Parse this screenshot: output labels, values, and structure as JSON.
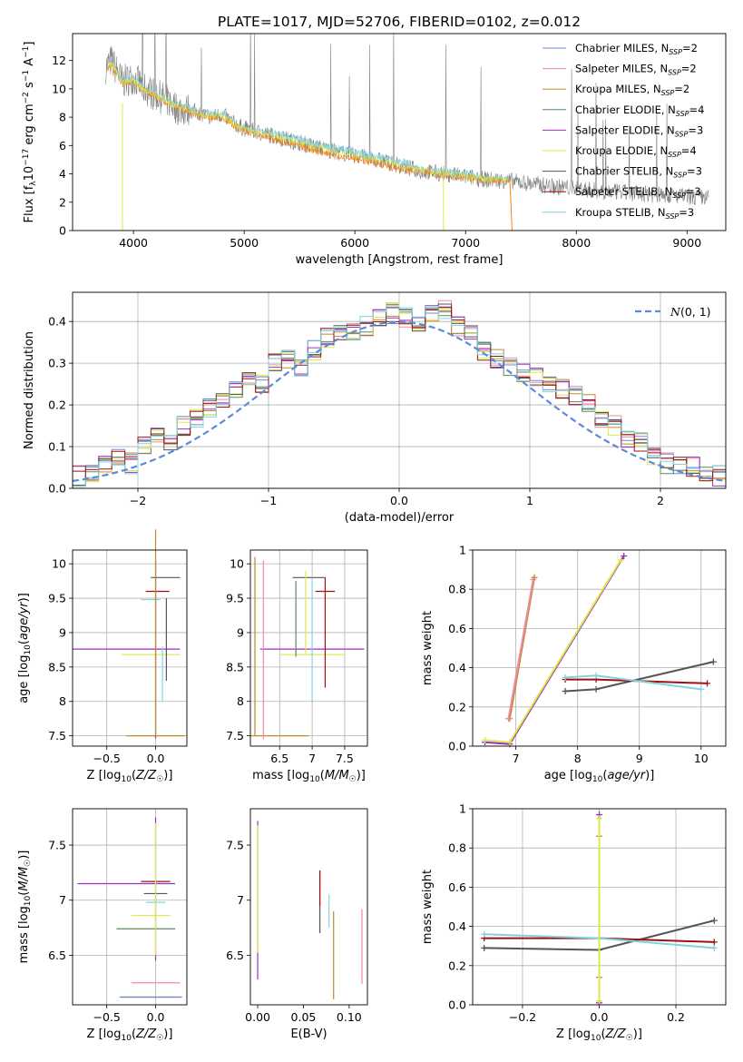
{
  "figure_title": "PLATE=1017, MJD=52706, FIBERID=0102, z=0.012",
  "colors": {
    "Chabrier MILES": "#6b8bd6",
    "Salpeter MILES": "#f08aa0",
    "Kroupa MILES": "#c08a2a",
    "Chabrier ELODIE": "#5e8a5e",
    "Salpeter ELODIE": "#9b30c0",
    "Kroupa ELODIE": "#dde84a",
    "Chabrier STELIB": "#555555",
    "Salpeter STELIB": "#a01010",
    "Kroupa STELIB": "#7fd4e0",
    "observed": "#808080",
    "model": "#ff7f0e",
    "gaussian": "#5b8bd8"
  },
  "chart_data": [
    {
      "id": "spectrum",
      "type": "line",
      "title": "PLATE=1017, MJD=52706, FIBERID=0102, z=0.012",
      "xlabel": "wavelength [Angstrom, rest frame]",
      "ylabel": "Flux [f_λ10^-17 erg cm^-2 s^-1 A^-1]",
      "xlim": [
        3450,
        9350
      ],
      "ylim": [
        0,
        13.9
      ],
      "xticks": [
        4000,
        5000,
        6000,
        7000,
        8000,
        9000
      ],
      "yticks": [
        0,
        2,
        4,
        6,
        8,
        10,
        12
      ],
      "grid": false,
      "legend_position": "top-right",
      "legend": [
        {
          "name": "Chabrier MILES",
          "nssp": "2"
        },
        {
          "name": "Salpeter MILES",
          "nssp": "2"
        },
        {
          "name": "Kroupa MILES",
          "nssp": "2"
        },
        {
          "name": "Chabrier ELODIE",
          "nssp": "4"
        },
        {
          "name": "Salpeter ELODIE",
          "nssp": "3"
        },
        {
          "name": "Kroupa ELODIE",
          "nssp": "4"
        },
        {
          "name": "Chabrier STELIB",
          "nssp": "3"
        },
        {
          "name": "Salpeter STELIB",
          "nssp": "3"
        },
        {
          "name": "Kroupa STELIB",
          "nssp": "3"
        }
      ],
      "observed_trend": {
        "x": [
          3750,
          3800,
          3900,
          4000,
          4100,
          4200,
          4300,
          4400,
          4500,
          4600,
          4700,
          4800,
          4900,
          5000,
          5200,
          5400,
          5600,
          5800,
          6000,
          6200,
          6400,
          6600,
          6800,
          7000,
          7200,
          7400,
          7600,
          7800,
          8000,
          8200,
          8400,
          8600,
          8800,
          9000,
          9200
        ],
        "y": [
          11.5,
          12.0,
          10.5,
          10.8,
          10.0,
          9.6,
          9.2,
          8.6,
          8.5,
          8.3,
          8.0,
          8.2,
          7.6,
          7.2,
          6.8,
          6.4,
          6.0,
          5.6,
          5.3,
          5.0,
          4.6,
          4.2,
          4.0,
          3.8,
          3.6,
          3.5,
          3.3,
          3.1,
          3.0,
          2.8,
          2.7,
          2.6,
          2.5,
          2.4,
          2.3
        ]
      },
      "model_trend": {
        "x": [
          3760,
          3800,
          3900,
          4000,
          4100,
          4200,
          4300,
          4400,
          4500,
          4600,
          4700,
          4800,
          4900,
          5000,
          5200,
          5400,
          5600,
          5800,
          6000,
          6200,
          6400,
          6600,
          6800,
          7000,
          7200,
          7400
        ],
        "y": [
          11.2,
          11.8,
          10.4,
          10.6,
          9.9,
          9.5,
          9.1,
          8.7,
          8.5,
          8.2,
          8.0,
          8.1,
          7.5,
          7.1,
          6.7,
          6.3,
          5.9,
          5.5,
          5.2,
          4.9,
          4.5,
          4.2,
          4.0,
          3.8,
          3.6,
          3.5
        ]
      }
    },
    {
      "id": "residuals",
      "type": "bar",
      "xlabel": "(data-model)/error",
      "ylabel": "Normed distribution",
      "xlim": [
        -2.5,
        2.5
      ],
      "ylim": [
        0,
        0.47
      ],
      "xticks": [
        -2,
        -1,
        0,
        1,
        2
      ],
      "yticks": [
        0.0,
        0.1,
        0.2,
        0.3,
        0.4
      ],
      "grid": true,
      "legend_position": "top-right",
      "legend_label": "N(0,1)",
      "bin_width": 0.1,
      "bin_start": -2.5,
      "values": [
        0.03,
        0.04,
        0.06,
        0.07,
        0.06,
        0.1,
        0.12,
        0.11,
        0.15,
        0.17,
        0.19,
        0.21,
        0.24,
        0.27,
        0.25,
        0.3,
        0.31,
        0.29,
        0.33,
        0.36,
        0.38,
        0.37,
        0.39,
        0.41,
        0.42,
        0.41,
        0.4,
        0.42,
        0.43,
        0.39,
        0.37,
        0.33,
        0.31,
        0.29,
        0.28,
        0.27,
        0.25,
        0.24,
        0.22,
        0.2,
        0.17,
        0.15,
        0.12,
        0.11,
        0.08,
        0.06,
        0.05,
        0.05,
        0.04,
        0.03
      ]
    },
    {
      "id": "age-vs-Z",
      "type": "errorbar",
      "xlabel": "Z [log10(Z/Z☉)]",
      "ylabel": "age [log10(age/yr)]",
      "xlim": [
        -0.85,
        0.32
      ],
      "ylim": [
        7.35,
        10.2
      ],
      "xticks": [
        -0.5,
        0.0
      ],
      "xticklabels": [
        "−0.5",
        "0.0"
      ],
      "yticks": [
        7.5,
        8.0,
        8.5,
        9.0,
        9.5,
        10.0
      ],
      "grid": true,
      "points": [
        {
          "series": "Salpeter ELODIE",
          "x": -0.3,
          "y": 8.76,
          "xerr": 0.55,
          "yerr": 0
        },
        {
          "series": "Kroupa ELODIE",
          "x": -0.05,
          "y": 8.68,
          "xerr": 0.3,
          "yerr": 0
        },
        {
          "series": "Chabrier STELIB",
          "x": 0.1,
          "y": 9.8,
          "xerr": 0.15,
          "yerr": 0.0
        },
        {
          "series": "Salpeter STELIB",
          "x": 0.02,
          "y": 9.6,
          "xerr": 0.12,
          "yerr": 0
        },
        {
          "series": "Kroupa STELIB",
          "x": -0.05,
          "y": 9.48,
          "xerr": 0.1,
          "yerr": 0
        },
        {
          "series": "Kroupa MILES",
          "x": 0.0,
          "y": 7.5,
          "xerr": 0.3,
          "yerr": 0
        },
        {
          "series": "Chabrier STELIB",
          "x": 0.11,
          "y": 8.9,
          "xerr": 0,
          "yerr": 0.6
        },
        {
          "series": "Kroupa STELIB",
          "x": 0.07,
          "y": 8.4,
          "xerr": 0,
          "yerr": 0.4
        },
        {
          "series": "Salpeter ELODIE",
          "x": 0.0,
          "y": 8.76,
          "xerr": 0,
          "yerr": 1.3
        },
        {
          "series": "Kroupa MILES",
          "x": 0.0,
          "y": 9.0,
          "xerr": 0,
          "yerr": 1.5
        }
      ]
    },
    {
      "id": "age-vs-mass",
      "type": "errorbar",
      "xlabel": "mass [log10(M/M☉)]",
      "ylabel": "",
      "xlim": [
        6.05,
        7.85
      ],
      "ylim": [
        7.35,
        10.2
      ],
      "xticks": [
        6.5,
        7.0,
        7.5
      ],
      "yticks": [
        7.5,
        8.0,
        8.5,
        9.0,
        9.5,
        10.0
      ],
      "grid": true,
      "points": [
        {
          "series": "Salpeter ELODIE",
          "x": 7.0,
          "y": 8.76,
          "xerr": 0.8,
          "yerr": 0
        },
        {
          "series": "Kroupa ELODIE",
          "x": 7.0,
          "y": 8.68,
          "xerr": 0.5,
          "yerr": 0
        },
        {
          "series": "Chabrier STELIB",
          "x": 6.95,
          "y": 9.8,
          "xerr": 0.25,
          "yerr": 0
        },
        {
          "series": "Salpeter STELIB",
          "x": 7.2,
          "y": 9.6,
          "xerr": 0.15,
          "yerr": 0
        },
        {
          "series": "Kroupa MILES",
          "x": 6.5,
          "y": 7.5,
          "xerr": 0.45,
          "yerr": 0
        },
        {
          "series": "Chabrier ELODIE",
          "x": 6.75,
          "y": 9.2,
          "xerr": 0,
          "yerr": 0.55
        },
        {
          "series": "Salpeter MILES",
          "x": 6.25,
          "y": 8.75,
          "xerr": 0,
          "yerr": 1.3
        },
        {
          "series": "Kroupa STELIB",
          "x": 7.0,
          "y": 8.9,
          "xerr": 0,
          "yerr": 0.9
        },
        {
          "series": "Kroupa MILES",
          "x": 6.12,
          "y": 8.8,
          "xerr": 0,
          "yerr": 1.3
        },
        {
          "series": "Kroupa ELODIE",
          "x": 6.9,
          "y": 9.3,
          "xerr": 0,
          "yerr": 0.6
        },
        {
          "series": "Salpeter STELIB",
          "x": 7.2,
          "y": 9.0,
          "xerr": 0,
          "yerr": 0.8
        }
      ]
    },
    {
      "id": "massweight-vs-age",
      "type": "line",
      "xlabel": "age [log10(age/yr)]",
      "ylabel": "mass weight",
      "xlim": [
        6.3,
        10.4
      ],
      "ylim": [
        0,
        1.0
      ],
      "xticks": [
        7,
        8,
        9,
        10
      ],
      "yticks": [
        0.0,
        0.2,
        0.4,
        0.6,
        0.8,
        1.0
      ],
      "grid": true,
      "series": [
        {
          "name": "Kroupa MILES",
          "x": [
            6.9,
            7.3
          ],
          "y": [
            0.14,
            0.86
          ]
        },
        {
          "name": "Salpeter MILES",
          "x": [
            6.88,
            7.28
          ],
          "y": [
            0.14,
            0.85
          ]
        },
        {
          "name": "Salpeter ELODIE",
          "x": [
            6.5,
            6.9,
            8.75
          ],
          "y": [
            0.02,
            0.01,
            0.97
          ]
        },
        {
          "name": "Kroupa ELODIE",
          "x": [
            6.5,
            6.9,
            8.7
          ],
          "y": [
            0.03,
            0.02,
            0.95
          ]
        },
        {
          "name": "Chabrier STELIB",
          "x": [
            7.8,
            8.3,
            10.2
          ],
          "y": [
            0.28,
            0.29,
            0.43
          ]
        },
        {
          "name": "Salpeter STELIB",
          "x": [
            7.8,
            8.3,
            10.1
          ],
          "y": [
            0.34,
            0.34,
            0.32
          ]
        },
        {
          "name": "Kroupa STELIB",
          "x": [
            7.8,
            8.3,
            10.0
          ],
          "y": [
            0.35,
            0.36,
            0.29
          ]
        }
      ]
    },
    {
      "id": "mass-vs-Z",
      "type": "errorbar",
      "xlabel": "Z [log10(Z/Z☉)]",
      "ylabel": "mass [log10(M/M☉)]",
      "xlim": [
        -0.85,
        0.32
      ],
      "ylim": [
        6.05,
        7.83
      ],
      "xticks": [
        -0.5,
        0.0
      ],
      "xticklabels": [
        "−0.5",
        "0.0"
      ],
      "yticks": [
        6.5,
        7.0,
        7.5
      ],
      "grid": true,
      "points": [
        {
          "series": "Salpeter ELODIE",
          "x": -0.3,
          "y": 7.15,
          "xerr": 0.5,
          "yerr": 0
        },
        {
          "series": "Salpeter STELIB",
          "x": 0.0,
          "y": 7.17,
          "xerr": 0.15,
          "yerr": 0
        },
        {
          "series": "Chabrier STELIB",
          "x": 0.0,
          "y": 7.06,
          "xerr": 0.12,
          "yerr": 0
        },
        {
          "series": "Kroupa STELIB",
          "x": 0.0,
          "y": 6.98,
          "xerr": 0.1,
          "yerr": 0
        },
        {
          "series": "Kroupa ELODIE",
          "x": -0.05,
          "y": 6.86,
          "xerr": 0.2,
          "yerr": 0
        },
        {
          "series": "Chabrier ELODIE",
          "x": -0.1,
          "y": 6.74,
          "xerr": 0.3,
          "yerr": 0
        },
        {
          "series": "Salpeter MILES",
          "x": 0.0,
          "y": 6.25,
          "xerr": 0.25,
          "yerr": 0
        },
        {
          "series": "Kroupa MILES",
          "x": -0.05,
          "y": 6.12,
          "xerr": 0.3,
          "yerr": 0
        },
        {
          "series": "Chabrier MILES",
          "x": -0.05,
          "y": 6.12,
          "xerr": 0.32,
          "yerr": 0
        },
        {
          "series": "Salpeter ELODIE",
          "x": 0.0,
          "y": 7.1,
          "xerr": 0,
          "yerr": 0.65
        },
        {
          "series": "Kroupa ELODIE",
          "x": 0.0,
          "y": 7.1,
          "xerr": 0,
          "yerr": 0.6
        }
      ]
    },
    {
      "id": "mass-vs-ebv",
      "type": "errorbar",
      "xlabel": "E(B-V)",
      "ylabel": "",
      "xlim": [
        -0.008,
        0.12
      ],
      "ylim": [
        6.05,
        7.83
      ],
      "xticks": [
        0.0,
        0.05,
        0.1
      ],
      "xticklabels": [
        "0.00",
        "0.05",
        "0.10"
      ],
      "yticks": [
        6.5,
        7.0,
        7.5
      ],
      "grid": false,
      "points": [
        {
          "series": "Salpeter ELODIE",
          "x": 0.0,
          "y": 7.0,
          "xerr": 0,
          "yerr": 0.72
        },
        {
          "series": "Kroupa ELODIE",
          "x": 0.0,
          "y": 7.1,
          "xerr": 0,
          "yerr": 0.58
        },
        {
          "series": "Chabrier STELIB",
          "x": 0.068,
          "y": 6.98,
          "xerr": 0,
          "yerr": 0.28
        },
        {
          "series": "Salpeter STELIB",
          "x": 0.068,
          "y": 7.11,
          "xerr": 0,
          "yerr": 0.16
        },
        {
          "series": "Kroupa STELIB",
          "x": 0.078,
          "y": 6.9,
          "xerr": 0,
          "yerr": 0.15
        },
        {
          "series": "Kroupa MILES",
          "x": 0.083,
          "y": 6.5,
          "xerr": 0,
          "yerr": 0.4
        },
        {
          "series": "Salpeter MILES",
          "x": 0.114,
          "y": 6.58,
          "xerr": 0,
          "yerr": 0.34
        }
      ]
    },
    {
      "id": "massweight-vs-Z",
      "type": "line",
      "xlabel": "Z [log10(Z/Z☉)]",
      "ylabel": "mass weight",
      "xlim": [
        -0.33,
        0.33
      ],
      "ylim": [
        0,
        1.0
      ],
      "xticks": [
        -0.2,
        0.0,
        0.2
      ],
      "xticklabels": [
        "−0.2",
        "0.0",
        "0.2"
      ],
      "yticks": [
        0.0,
        0.2,
        0.4,
        0.6,
        0.8,
        1.0
      ],
      "grid": true,
      "series": [
        {
          "name": "Chabrier STELIB",
          "x": [
            -0.3,
            0.0,
            0.3
          ],
          "y": [
            0.29,
            0.28,
            0.43
          ]
        },
        {
          "name": "Salpeter STELIB",
          "x": [
            -0.3,
            0.0,
            0.3
          ],
          "y": [
            0.34,
            0.34,
            0.32
          ]
        },
        {
          "name": "Kroupa STELIB",
          "x": [
            -0.3,
            0.0,
            0.3
          ],
          "y": [
            0.36,
            0.34,
            0.29
          ]
        },
        {
          "name": "Kroupa MILES",
          "x": [
            0.0,
            0.0
          ],
          "y": [
            0.14,
            0.86
          ]
        },
        {
          "name": "Salpeter ELODIE",
          "x": [
            0.0,
            0.0
          ],
          "y": [
            0.01,
            0.97
          ]
        },
        {
          "name": "Kroupa ELODIE",
          "x": [
            0.0,
            0.0
          ],
          "y": [
            0.02,
            0.95
          ]
        }
      ]
    }
  ]
}
